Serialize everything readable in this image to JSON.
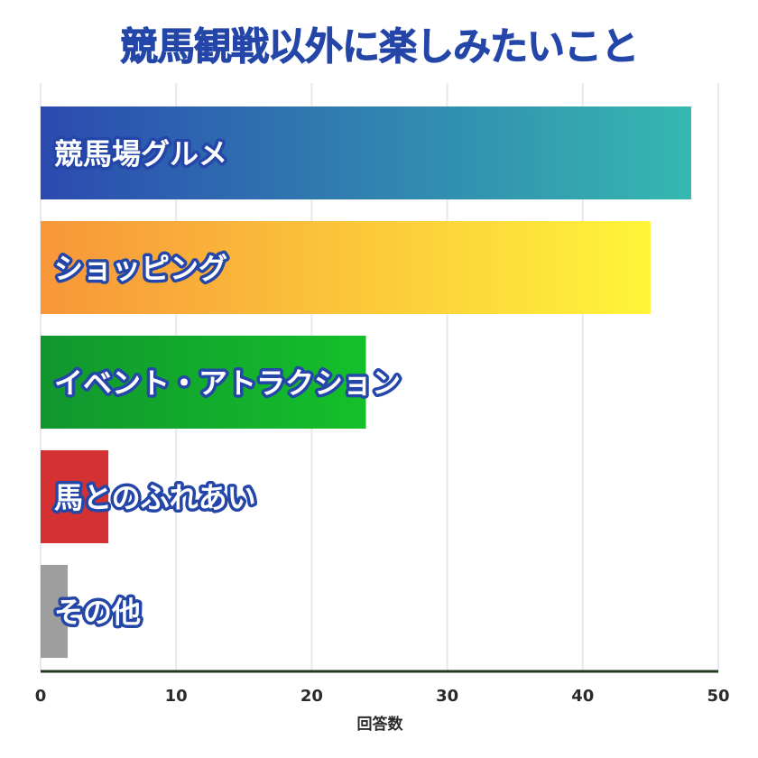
{
  "chart_data": {
    "type": "bar",
    "orientation": "horizontal",
    "title": "競馬観戦以外に楽しみたいこと",
    "xlabel": "回答数",
    "ylabel": "",
    "xlim": [
      0,
      50
    ],
    "xticks": [
      "0",
      "10",
      "20",
      "30",
      "40",
      "50"
    ],
    "grid": true,
    "categories": [
      "競馬場グルメ",
      "ショッピング",
      "イベント・アトラクション",
      "馬とのふれあい",
      "その他"
    ],
    "values": [
      48,
      45,
      24,
      5,
      2
    ],
    "colors": [
      [
        "#2b4ab0",
        "#36b8b0"
      ],
      [
        "#f7963a",
        "#fff53a"
      ],
      [
        "#11962e",
        "#14c02a"
      ],
      [
        "#d43232",
        "#d43232"
      ],
      [
        "#9e9e9e",
        "#9e9e9e"
      ]
    ]
  }
}
